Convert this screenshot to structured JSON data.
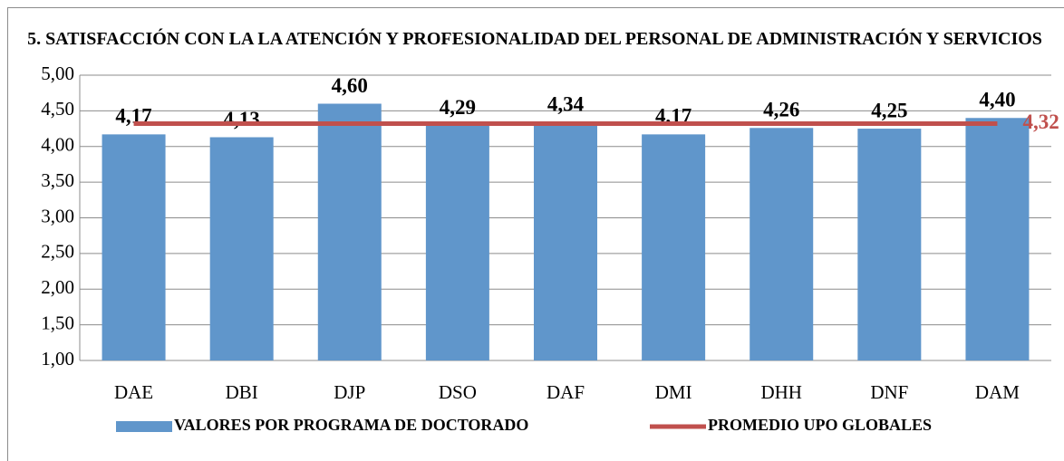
{
  "chart_data": {
    "type": "bar",
    "title": "5. SATISFACCIÓN CON LA LA ATENCIÓN Y PROFESIONALIDAD DEL PERSONAL DE ADMINISTRACIÓN Y SERVICIOS",
    "categories": [
      "DAE",
      "DBI",
      "DJP",
      "DSO",
      "DAF",
      "DMI",
      "DHH",
      "DNF",
      "DAM"
    ],
    "series": [
      {
        "name": "VALORES POR PROGRAMA DE DOCTORADO",
        "type": "bar",
        "color": "#6096cb",
        "values": [
          4.17,
          4.13,
          4.6,
          4.29,
          4.34,
          4.17,
          4.26,
          4.25,
          4.4
        ],
        "value_labels": [
          "4,17",
          "4,13",
          "4,60",
          "4,29",
          "4,34",
          "4,17",
          "4,26",
          "4,25",
          "4,40"
        ]
      },
      {
        "name": "PROMEDIO UPO GLOBALES",
        "type": "line",
        "color": "#c0504d",
        "values": [
          4.32,
          4.32,
          4.32,
          4.32,
          4.32,
          4.32,
          4.32,
          4.32,
          4.32
        ],
        "value_labels": [
          null,
          null,
          null,
          null,
          null,
          null,
          null,
          null,
          "4,32"
        ]
      }
    ],
    "ylim": [
      1,
      5
    ],
    "yticks": [
      {
        "value": 1,
        "label": "1,00"
      },
      {
        "value": 1.5,
        "label": "1,50"
      },
      {
        "value": 2,
        "label": "2,00"
      },
      {
        "value": 2.5,
        "label": "2,50"
      },
      {
        "value": 3,
        "label": "3,00"
      },
      {
        "value": 3.5,
        "label": "3,50"
      },
      {
        "value": 4,
        "label": "4,00"
      },
      {
        "value": 4.5,
        "label": "4,50"
      },
      {
        "value": 5,
        "label": "5,00"
      }
    ],
    "grid": true,
    "legend": "bottom"
  }
}
